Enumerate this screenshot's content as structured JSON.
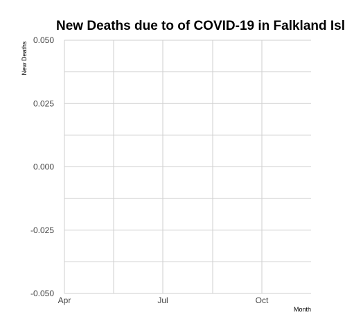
{
  "chart_data": {
    "type": "line",
    "title": "New Deaths due to of COVID-19 in Falkland Isl",
    "xlabel": "Month",
    "ylabel": "New Deaths",
    "x_ticks": [
      "Apr",
      "Jul",
      "Oct"
    ],
    "y_ticks": [
      "-0.050",
      "-0.025",
      "0.000",
      "0.025",
      "0.050"
    ],
    "ylim": [
      -0.05,
      0.05
    ],
    "grid": true,
    "series": []
  }
}
